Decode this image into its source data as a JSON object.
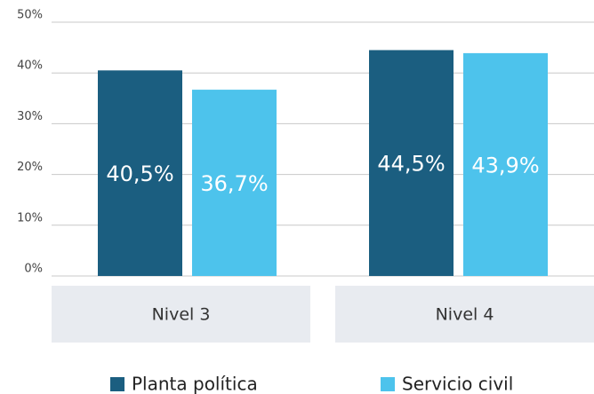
{
  "chart_data": {
    "type": "bar",
    "categories": [
      "Nivel 3",
      "Nivel 4"
    ],
    "series": [
      {
        "name": "Planta política",
        "color": "#1b5e80",
        "values": [
          40.5,
          44.5
        ],
        "value_labels": [
          "40,5%",
          "44,5%"
        ]
      },
      {
        "name": "Servicio civil",
        "color": "#4dc3ec",
        "values": [
          36.7,
          43.9
        ],
        "value_labels": [
          "36,7%",
          "43,9%"
        ]
      }
    ],
    "ylim": [
      0,
      50
    ],
    "yticks": [
      {
        "value": 0,
        "label": "0%"
      },
      {
        "value": 10,
        "label": "10%"
      },
      {
        "value": 20,
        "label": "20%"
      },
      {
        "value": 30,
        "label": "30%"
      },
      {
        "value": 40,
        "label": "40%"
      },
      {
        "value": 50,
        "label": "50%"
      }
    ],
    "grid": true,
    "legend": "bottom"
  }
}
